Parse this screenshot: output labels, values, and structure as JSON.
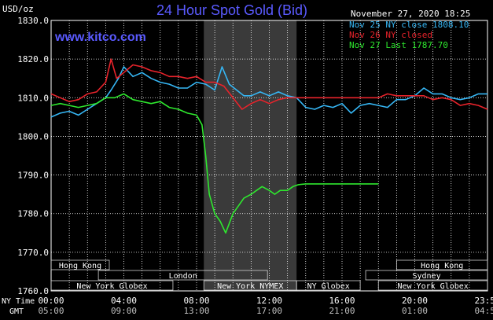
{
  "title": "24 Hour Spot Gold (Bid)",
  "unit": "USD/oz",
  "datetime": "November 27, 2020 18:25",
  "watermark": "www.kitco.com",
  "colors": {
    "background": "#000000",
    "title": "#5a5aff",
    "watermark": "#5a5aff",
    "grid": "#ffffff",
    "nov25": "#36b7f5",
    "nov26": "#e8232b",
    "nov27": "#2ee82e",
    "shade": "#3a3a3a",
    "session_text": "#ffffff",
    "axis_text": "#ffffff"
  },
  "legend": [
    {
      "label": "Nov 25 NY close 1808.10",
      "color": "#36b7f5"
    },
    {
      "label": "Nov 26 NY closed",
      "color": "#e8232b"
    },
    {
      "label": "Nov 27 Last 1787.70",
      "color": "#2ee82e"
    }
  ],
  "time_row_labels": {
    "ny": "NY Time",
    "gmt": "GMT"
  },
  "sessions": [
    {
      "name": "Hong Kong",
      "start": 0,
      "end": 3.2,
      "row": 1
    },
    {
      "name": "London",
      "start": 2.6,
      "end": 11.9,
      "row": 2
    },
    {
      "name": "New York Globex",
      "start": 0,
      "end": 6.7,
      "row": 3
    },
    {
      "name": "New York NYMEX",
      "start": 8.4,
      "end": 13.5,
      "row": 3
    },
    {
      "name": "NY Globex",
      "start": 13.5,
      "end": 17.0,
      "row": 3
    },
    {
      "name": "Hong Kong",
      "start": 19.0,
      "end": 24.0,
      "row": 1
    },
    {
      "name": "Sydney",
      "start": 17.3,
      "end": 24.0,
      "row": 2
    },
    {
      "name": "New York Globex",
      "start": 18.0,
      "end": 24.0,
      "row": 3
    }
  ],
  "chart_data": {
    "type": "line",
    "title": "24 Hour Spot Gold (Bid)",
    "ylabel": "USD/oz",
    "ylim": [
      1760,
      1830
    ],
    "xlim": [
      0,
      24
    ],
    "y_ticks": [
      "1760.0",
      "1770.0",
      "1780.0",
      "1790.0",
      "1800.0",
      "1810.0",
      "1820.0",
      "1830.0"
    ],
    "x_ticks": [
      {
        "ny": "00:00",
        "gmt": "05:00",
        "x": 0
      },
      {
        "ny": "04:00",
        "gmt": "09:00",
        "x": 4
      },
      {
        "ny": "08:00",
        "gmt": "13:00",
        "x": 8
      },
      {
        "ny": "12:00",
        "gmt": "17:00",
        "x": 12
      },
      {
        "ny": "16:00",
        "gmt": "21:00",
        "x": 16
      },
      {
        "ny": "20:00",
        "gmt": "01:00",
        "x": 20
      },
      {
        "ny": "23:59",
        "gmt": "04:59",
        "x": 24
      }
    ],
    "grid": true,
    "shaded_x_range": [
      8.4,
      13.5
    ],
    "series": [
      {
        "name": "Nov 25 NY close 1808.10",
        "x": [
          0,
          0.5,
          1,
          1.5,
          2,
          2.5,
          3,
          3.3,
          3.7,
          4,
          4.5,
          5,
          5.5,
          6,
          6.5,
          7,
          7.5,
          8,
          8.5,
          9,
          9.4,
          9.8,
          10.2,
          10.6,
          11,
          11.5,
          12,
          12.5,
          13,
          13.5,
          14,
          14.5,
          15,
          15.5,
          16,
          16.5,
          17,
          17.5,
          18,
          18.5,
          19,
          19.5,
          20,
          20.5,
          21,
          21.5,
          22,
          22.5,
          23,
          23.5,
          24
        ],
        "y": [
          1805,
          1806,
          1806.5,
          1805.5,
          1807,
          1808.5,
          1810,
          1812,
          1815,
          1818,
          1815.5,
          1816.5,
          1815,
          1814,
          1813.5,
          1812.5,
          1812.5,
          1814,
          1813.5,
          1812,
          1818,
          1813.5,
          1812,
          1810.5,
          1810.5,
          1811.5,
          1810.5,
          1811.5,
          1810.5,
          1810,
          1807.5,
          1807,
          1808,
          1807.5,
          1808.5,
          1806,
          1808,
          1808.5,
          1808,
          1807.5,
          1809.5,
          1809.5,
          1810.5,
          1812.5,
          1811,
          1811,
          1810,
          1809.5,
          1810,
          1811,
          1811
        ]
      },
      {
        "name": "Nov 26 NY closed",
        "x": [
          0,
          0.5,
          1,
          1.5,
          2,
          2.5,
          3,
          3.3,
          3.6,
          4,
          4.5,
          5,
          5.5,
          6,
          6.5,
          7,
          7.5,
          8,
          8.5,
          9,
          9.5,
          10,
          10.5,
          11,
          11.5,
          12,
          12.5,
          13,
          13.5,
          14,
          15,
          16,
          17,
          18,
          18.5,
          19,
          19.5,
          20,
          20.5,
          21,
          21.5,
          22,
          22.5,
          23,
          23.5,
          24
        ],
        "y": [
          1811,
          1810,
          1809,
          1809.5,
          1811,
          1811.5,
          1814,
          1820,
          1815,
          1816.5,
          1818.5,
          1818,
          1817,
          1816.5,
          1815.5,
          1815.5,
          1815,
          1815.5,
          1814,
          1814,
          1813,
          1810,
          1807,
          1808.5,
          1809.5,
          1808.5,
          1809.5,
          1810,
          1810,
          1810,
          1810,
          1810,
          1810,
          1810,
          1811,
          1810.5,
          1810.5,
          1810.5,
          1810.5,
          1809.5,
          1810,
          1809.5,
          1808,
          1808.5,
          1808,
          1807
        ]
      },
      {
        "name": "Nov 27 Last 1787.70",
        "x": [
          0,
          0.5,
          1,
          1.5,
          2,
          2.5,
          3,
          3.5,
          4,
          4.5,
          5,
          5.5,
          6,
          6.5,
          7,
          7.5,
          8,
          8.3,
          8.5,
          8.7,
          9,
          9.3,
          9.6,
          10,
          10.3,
          10.6,
          11,
          11.3,
          11.6,
          12,
          12.3,
          12.6,
          13,
          13.3,
          13.6,
          14,
          15,
          16,
          17,
          18
        ],
        "y": [
          1808,
          1808.5,
          1808,
          1807.5,
          1808,
          1808.5,
          1810,
          1810,
          1811,
          1809.5,
          1809,
          1808.5,
          1809,
          1807.5,
          1807,
          1806,
          1805.5,
          1803,
          1795,
          1785,
          1780,
          1778,
          1775,
          1780,
          1782,
          1784,
          1785,
          1786,
          1787,
          1786,
          1785,
          1786,
          1786,
          1787,
          1787.5,
          1787.7,
          1787.7,
          1787.7,
          1787.7,
          1787.7
        ]
      }
    ]
  }
}
